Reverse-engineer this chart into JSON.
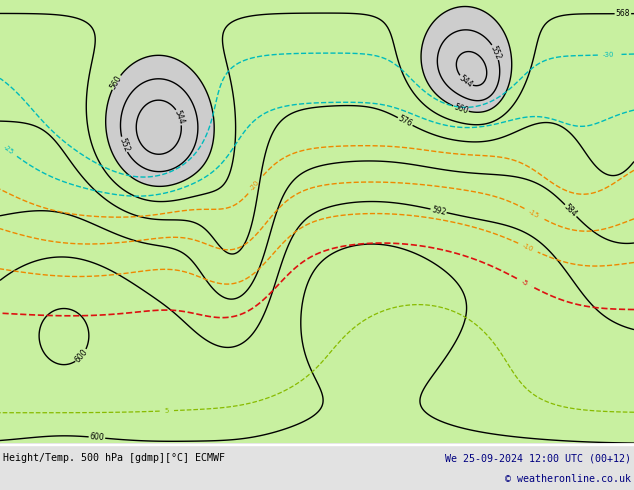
{
  "title_left": "Height/Temp. 500 hPa [gdmp][°C] ECMWF",
  "title_right": "We 25-09-2024 12:00 UTC (00+12)",
  "copyright": "© weatheronline.co.uk",
  "bg_color": "#e2e2e2",
  "green_fill": "#c8f0a0",
  "land_gray": "#c0c0c0",
  "navy": "#000080",
  "fig_w": 6.34,
  "fig_h": 4.9,
  "dpi": 100,
  "lon_min": -170,
  "lon_max": -50,
  "lat_min": 15,
  "lat_max": 75
}
